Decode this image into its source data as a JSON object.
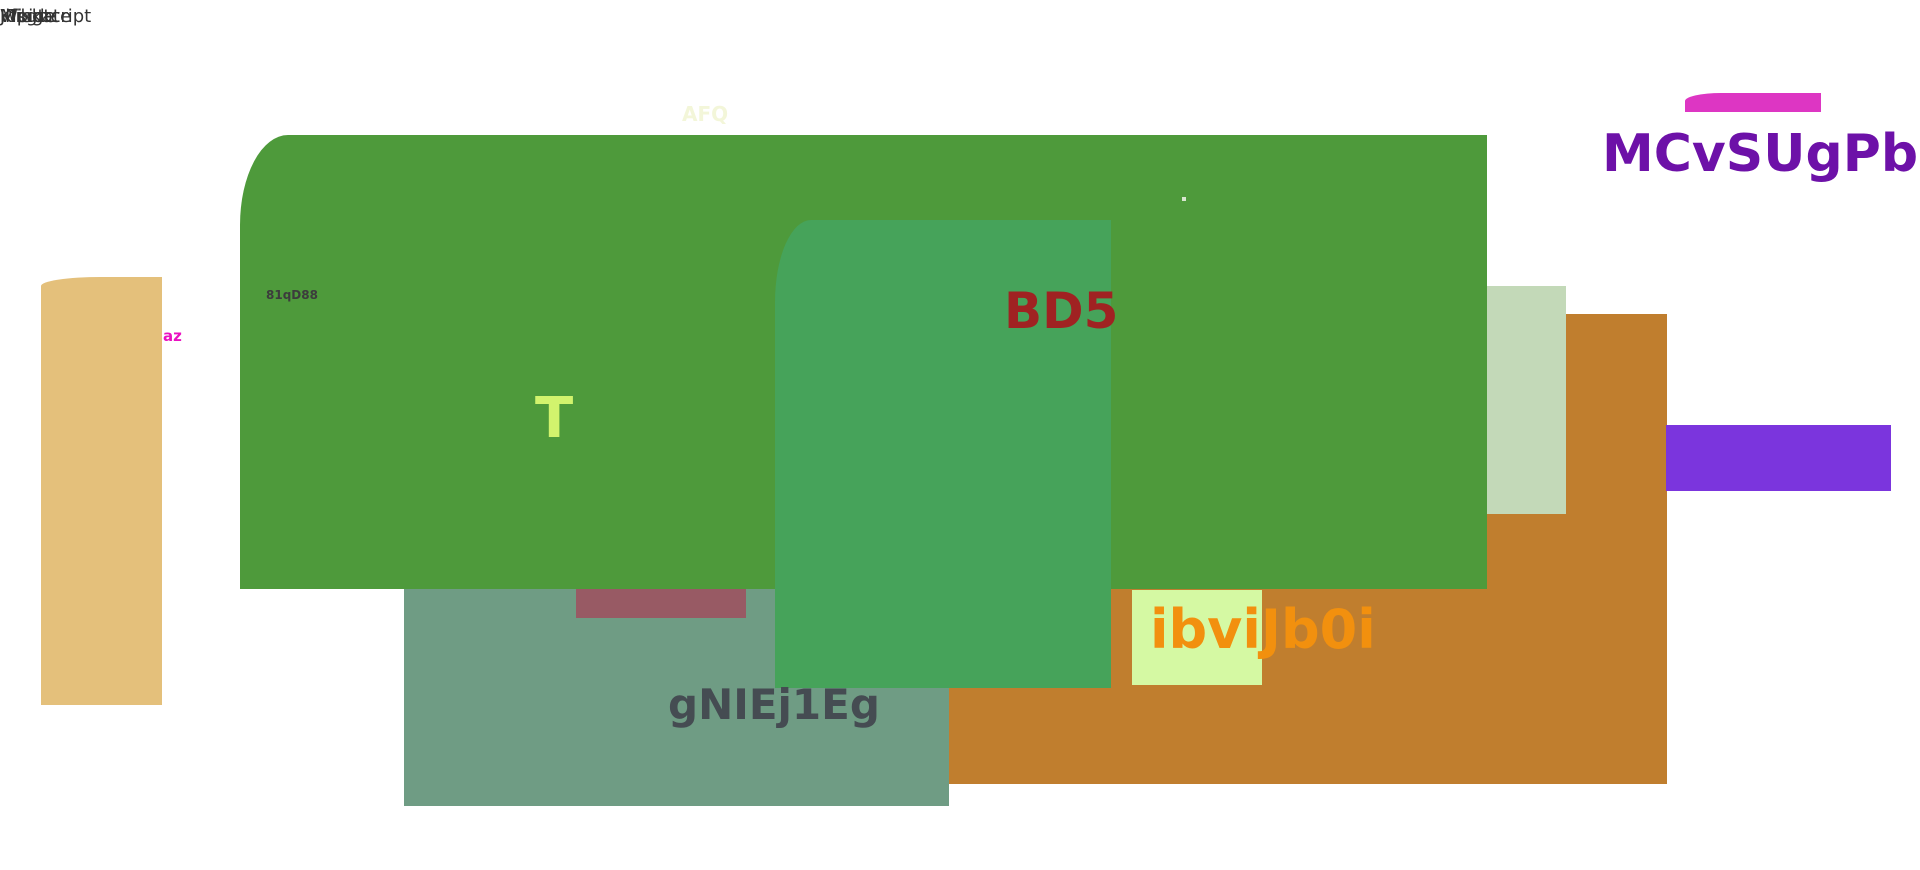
{
  "top_left_texts": [
    "Mihgtcript",
    "Jlfsgte",
    "Klpide",
    "Wiskate"
  ],
  "labels": {
    "afq": "AFQ",
    "mcvsugpb": "MCvSUgPb",
    "small_code": "81qD88",
    "az": "az",
    "bd5": "BD5",
    "t": "T",
    "ibvijb0i": "ibviJb0i",
    "gniej1eg": "gNIEj1Eg"
  },
  "colors": {
    "green_main": "#4e9a3b",
    "green_inner": "#46a35a",
    "orange": "#c07e2e",
    "teal": "#6f9c84",
    "maroon": "#985a64",
    "pale_green": "#c3d9b8",
    "lime": "#d5f9a3",
    "tan": "#e4c07b",
    "purple_bar": "#7b35dd",
    "magenta_pill": "#dd36c3",
    "mcv_text": "#6d11a8",
    "bd5_text": "#a02222",
    "t_text": "#d2f36d",
    "ibvi_text": "#f2900e",
    "gnie_text": "#454c52",
    "az_text": "#ea11c1"
  }
}
